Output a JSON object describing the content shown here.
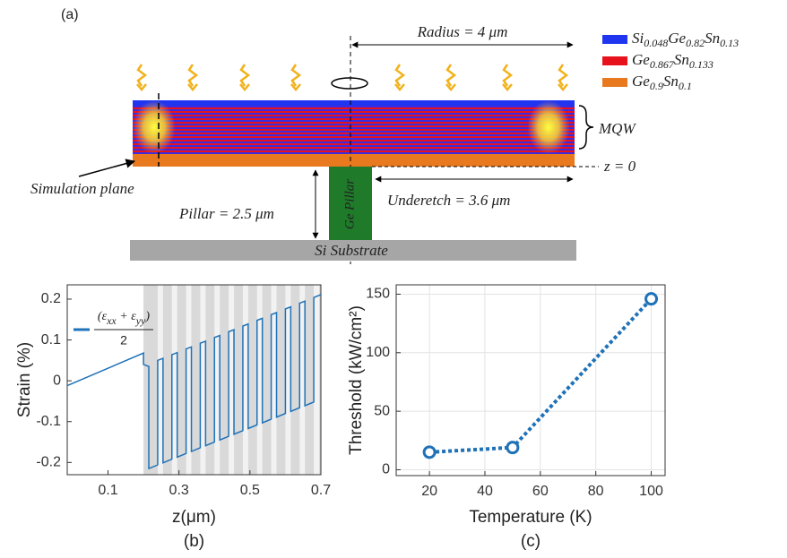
{
  "diagram": {
    "label": "(a)",
    "legend": [
      {
        "color": "#1f35f0",
        "parts": [
          "Si",
          "0.048",
          "Ge",
          "0.82",
          "Sn",
          "0.13"
        ]
      },
      {
        "color": "#e8121c",
        "parts": [
          "Ge",
          "0.867",
          "Sn",
          "0.133"
        ]
      },
      {
        "color": "#e8791e",
        "parts": [
          "Ge",
          "0.9",
          "Sn",
          "0.1"
        ]
      }
    ],
    "radius": "Radius = 4 μm",
    "mqw": "MQW",
    "z0": "z = 0",
    "simulation_plane": "Simulation plane",
    "pillar": "Pillar = 2.5 μm",
    "ge_pillar": "Ge Pillar",
    "underetch": "Underetch = 3.6 μm",
    "substrate": "Si Substrate"
  },
  "chart_data": [
    {
      "type": "line",
      "panel_label": "(b)",
      "xlabel": "z(μm)",
      "ylabel": "Strain (%)",
      "xlim": [
        -0.015,
        0.7
      ],
      "ylim": [
        -0.23,
        0.235
      ],
      "xticks": [
        0.1,
        0.3,
        0.5,
        0.7
      ],
      "yticks": [
        -0.2,
        -0.1,
        0,
        0.1,
        0.2
      ],
      "grid": false,
      "shaded_span": [
        0.2,
        0.7
      ],
      "shade_color": "#d9d9d9",
      "stripes": [
        [
          0.24,
          0.255
        ],
        [
          0.28,
          0.295
        ],
        [
          0.32,
          0.335
        ],
        [
          0.36,
          0.375
        ],
        [
          0.4,
          0.415
        ],
        [
          0.44,
          0.455
        ],
        [
          0.48,
          0.495
        ],
        [
          0.52,
          0.535
        ],
        [
          0.56,
          0.575
        ],
        [
          0.6,
          0.615
        ],
        [
          0.64,
          0.655
        ],
        [
          0.68,
          0.695
        ]
      ],
      "stripe_color": "#f2f2f2",
      "legend_label": {
        "numerator": [
          "(ε",
          "xx",
          " + ε",
          "yy",
          ")"
        ],
        "denominator": "2"
      },
      "x": [
        -0.015,
        0.2,
        0.2,
        0.215,
        0.215,
        0.24,
        0.24,
        0.255,
        0.255,
        0.28,
        0.28,
        0.295,
        0.295,
        0.32,
        0.32,
        0.335,
        0.335,
        0.36,
        0.36,
        0.375,
        0.375,
        0.4,
        0.4,
        0.415,
        0.415,
        0.44,
        0.44,
        0.455,
        0.455,
        0.48,
        0.48,
        0.495,
        0.495,
        0.52,
        0.52,
        0.535,
        0.535,
        0.56,
        0.56,
        0.575,
        0.575,
        0.6,
        0.6,
        0.615,
        0.615,
        0.64,
        0.64,
        0.655,
        0.655,
        0.68,
        0.68,
        0.7
      ],
      "series": [
        {
          "color": "#1f72b8",
          "style": "solid",
          "markers": false,
          "values": [
            -0.012,
            0.068,
            0.04,
            0.035,
            -0.215,
            -0.206,
            0.05,
            0.055,
            -0.201,
            -0.192,
            0.064,
            0.069,
            -0.187,
            -0.178,
            0.078,
            0.083,
            -0.173,
            -0.164,
            0.092,
            0.097,
            -0.159,
            -0.15,
            0.106,
            0.111,
            -0.145,
            -0.136,
            0.12,
            0.125,
            -0.131,
            -0.122,
            0.134,
            0.139,
            -0.117,
            -0.108,
            0.148,
            0.153,
            -0.103,
            -0.094,
            0.162,
            0.167,
            -0.089,
            -0.08,
            0.176,
            0.181,
            -0.075,
            -0.066,
            0.19,
            0.195,
            -0.061,
            -0.052,
            0.204,
            0.211
          ]
        }
      ]
    },
    {
      "type": "line",
      "panel_label": "(c)",
      "xlabel": "Temperature (K)",
      "ylabel": "Threshold (kW/cm²)",
      "xlim": [
        8,
        105
      ],
      "ylim": [
        -5,
        158
      ],
      "xticks": [
        20,
        40,
        60,
        80,
        100
      ],
      "yticks": [
        0,
        50,
        100,
        150
      ],
      "grid": true,
      "x": [
        20,
        50,
        100
      ],
      "series": [
        {
          "color": "#1f72b8",
          "style": "dotted",
          "markers": true,
          "values": [
            15,
            19,
            146
          ]
        }
      ]
    }
  ]
}
